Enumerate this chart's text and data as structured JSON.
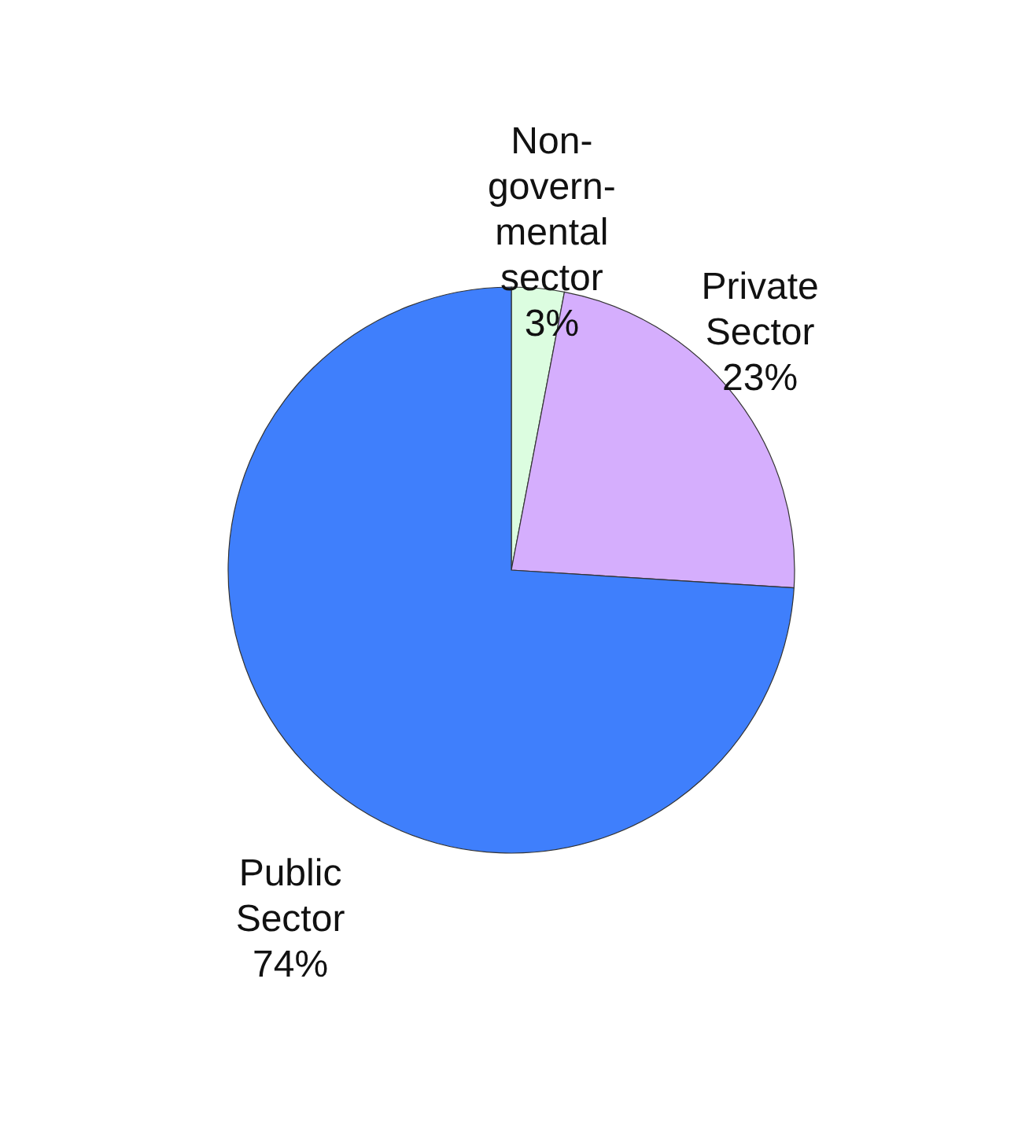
{
  "chart_data": {
    "type": "pie",
    "categories": [
      "Non-\ngovern-\nmental\nsector",
      "Private\nSector",
      "Public\nSector"
    ],
    "values": [
      3,
      23,
      74
    ],
    "value_labels": [
      "3%",
      "23%",
      "74%"
    ],
    "colors": [
      "#dcfde0",
      "#d5aefd",
      "#3f7ffc"
    ]
  }
}
